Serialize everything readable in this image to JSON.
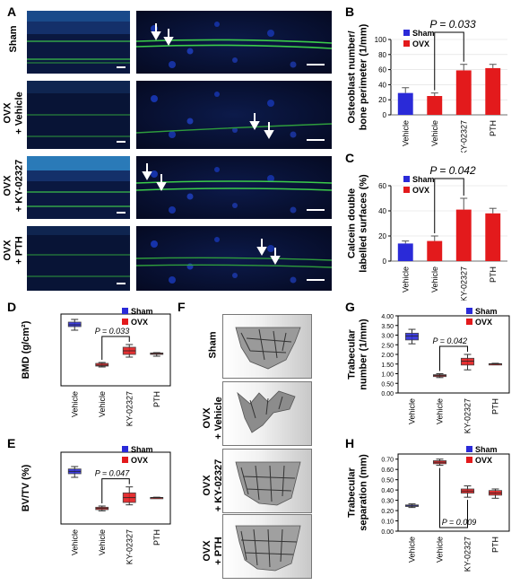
{
  "panels": {
    "A": "A",
    "B": "B",
    "C": "C",
    "D": "D",
    "E": "E",
    "F": "F",
    "G": "G",
    "H": "H"
  },
  "micrographs": {
    "rows": [
      {
        "line1": "Sham",
        "line2": ""
      },
      {
        "line1": "OVX",
        "line2": "+ Vehicle"
      },
      {
        "line1": "OVX",
        "line2": "+ KY-02327"
      },
      {
        "line1": "OVX",
        "line2": "+ PTH"
      }
    ]
  },
  "microct": {
    "rows": [
      {
        "line1": "Sham",
        "line2": ""
      },
      {
        "line1": "OVX",
        "line2": "+ Vehicle"
      },
      {
        "line1": "OVX",
        "line2": "+ KY-02327"
      },
      {
        "line1": "OVX",
        "line2": "+ PTH"
      }
    ]
  },
  "colors": {
    "sham": "#2a2ad8",
    "ovx": "#e31a1c",
    "box_edge": "#333333"
  },
  "chart_data": [
    {
      "id": "B",
      "type": "bar",
      "ylabel_lines": [
        "Osteoblast number/",
        "bone perimeter (1/mm)"
      ],
      "categories": [
        "Vehicle",
        "Vehicle",
        "KY-02327",
        "PTH"
      ],
      "groups": [
        "Sham",
        "OVX",
        "OVX",
        "OVX"
      ],
      "values": [
        29,
        25,
        59,
        62
      ],
      "errors": [
        7,
        4,
        8,
        5
      ],
      "yticks": [
        "0",
        "20",
        "40",
        "60",
        "80",
        "100"
      ],
      "ylim": [
        0,
        100
      ],
      "legend": [
        "Sham",
        "OVX"
      ],
      "pvalue": "P = 0.033",
      "bracket": [
        1,
        2
      ]
    },
    {
      "id": "C",
      "type": "bar",
      "ylabel_lines": [
        "Calcein double",
        "labelled surfaces (%)"
      ],
      "categories": [
        "Vehicle",
        "Vehicle",
        "KY-02327",
        "PTH"
      ],
      "groups": [
        "Sham",
        "OVX",
        "OVX",
        "OVX"
      ],
      "values": [
        14,
        16,
        41,
        38
      ],
      "errors": [
        2,
        4,
        9,
        4
      ],
      "yticks": [
        "0",
        "20",
        "40",
        "60"
      ],
      "ylim": [
        0,
        60
      ],
      "legend": [
        "Sham",
        "OVX"
      ],
      "pvalue": "P = 0.042",
      "bracket": [
        1,
        2
      ]
    },
    {
      "id": "D",
      "type": "box",
      "ylabel_html": "BMD (g/cm²)",
      "categories": [
        "Vehicle",
        "Vehicle",
        "KY-02327",
        "PTH"
      ],
      "groups": [
        "Sham",
        "OVX",
        "OVX",
        "OVX"
      ],
      "boxes": [
        {
          "min": 31,
          "q1": 33,
          "med": 34,
          "q3": 35.5,
          "max": 37
        },
        {
          "min": 10.5,
          "q1": 11,
          "med": 11.5,
          "q3": 12.5,
          "max": 13
        },
        {
          "min": 16,
          "q1": 17.5,
          "med": 19.5,
          "q3": 21.5,
          "max": 23
        },
        {
          "min": 16.5,
          "q1": 17.5,
          "med": 18,
          "q3": 18.3,
          "max": 18.5
        }
      ],
      "ylim": [
        0,
        40
      ],
      "legend": [
        "Sham",
        "OVX"
      ],
      "pvalue": "P = 0.033",
      "bracket": [
        1,
        2
      ]
    },
    {
      "id": "E",
      "type": "box",
      "ylabel_html": "BV/TV  (%)",
      "categories": [
        "Vehicle",
        "Vehicle",
        "KY-02327",
        "PTH"
      ],
      "groups": [
        "Sham",
        "OVX",
        "OVX",
        "OVX"
      ],
      "boxes": [
        {
          "min": 19.5,
          "q1": 21,
          "med": 22,
          "q3": 23,
          "max": 24
        },
        {
          "min": 5.5,
          "q1": 6,
          "med": 6.5,
          "q3": 7,
          "max": 7.5
        },
        {
          "min": 8,
          "q1": 9,
          "med": 11,
          "q3": 13,
          "max": 15.5
        },
        {
          "min": 10.8,
          "q1": 11,
          "med": 11,
          "q3": 11.1,
          "max": 11.2
        }
      ],
      "ylim": [
        0,
        30
      ],
      "legend": [
        "Sham",
        "OVX"
      ],
      "pvalue": "P = 0.047",
      "bracket": [
        1,
        2
      ]
    },
    {
      "id": "G",
      "type": "box",
      "ylabel_lines": [
        "Trabecular",
        "number (1/mm)"
      ],
      "categories": [
        "Vehicle",
        "Vehicle",
        "KY-02327",
        "PTH"
      ],
      "groups": [
        "Sham",
        "OVX",
        "OVX",
        "OVX"
      ],
      "boxes": [
        {
          "min": 2.55,
          "q1": 2.75,
          "med": 2.95,
          "q3": 3.1,
          "max": 3.3
        },
        {
          "min": 0.8,
          "q1": 0.85,
          "med": 0.9,
          "q3": 0.95,
          "max": 1.0
        },
        {
          "min": 1.2,
          "q1": 1.45,
          "med": 1.65,
          "q3": 1.8,
          "max": 2.0
        },
        {
          "min": 1.48,
          "q1": 1.5,
          "med": 1.51,
          "q3": 1.52,
          "max": 1.54
        }
      ],
      "yticks": [
        "0.00",
        "0.50",
        "1.00",
        "1.50",
        "2.00",
        "2.50",
        "3.00",
        "3.50",
        "4.00"
      ],
      "ylim": [
        0,
        4
      ],
      "legend": [
        "Sham",
        "OVX"
      ],
      "pvalue": "P = 0.042",
      "bracket": [
        1,
        2
      ]
    },
    {
      "id": "H",
      "type": "box",
      "ylabel_lines": [
        "Trabecular",
        "separation (mm)"
      ],
      "categories": [
        "Vehicle",
        "Vehicle",
        "KY-02327",
        "PTH"
      ],
      "groups": [
        "Sham",
        "OVX",
        "OVX",
        "OVX"
      ],
      "boxes": [
        {
          "min": 0.23,
          "q1": 0.24,
          "med": 0.245,
          "q3": 0.255,
          "max": 0.265
        },
        {
          "min": 0.64,
          "q1": 0.655,
          "med": 0.67,
          "q3": 0.685,
          "max": 0.7
        },
        {
          "min": 0.33,
          "q1": 0.37,
          "med": 0.39,
          "q3": 0.41,
          "max": 0.44
        },
        {
          "min": 0.32,
          "q1": 0.35,
          "med": 0.37,
          "q3": 0.395,
          "max": 0.41
        }
      ],
      "yticks": [
        "0.00",
        "0.10",
        "0.20",
        "0.30",
        "0.40",
        "0.50",
        "0.60",
        "0.70"
      ],
      "ylim": [
        0,
        0.75
      ],
      "legend": [
        "Sham",
        "OVX"
      ],
      "pvalue": "P = 0.009",
      "bracket": [
        1,
        2
      ],
      "bracket_below": true
    }
  ]
}
